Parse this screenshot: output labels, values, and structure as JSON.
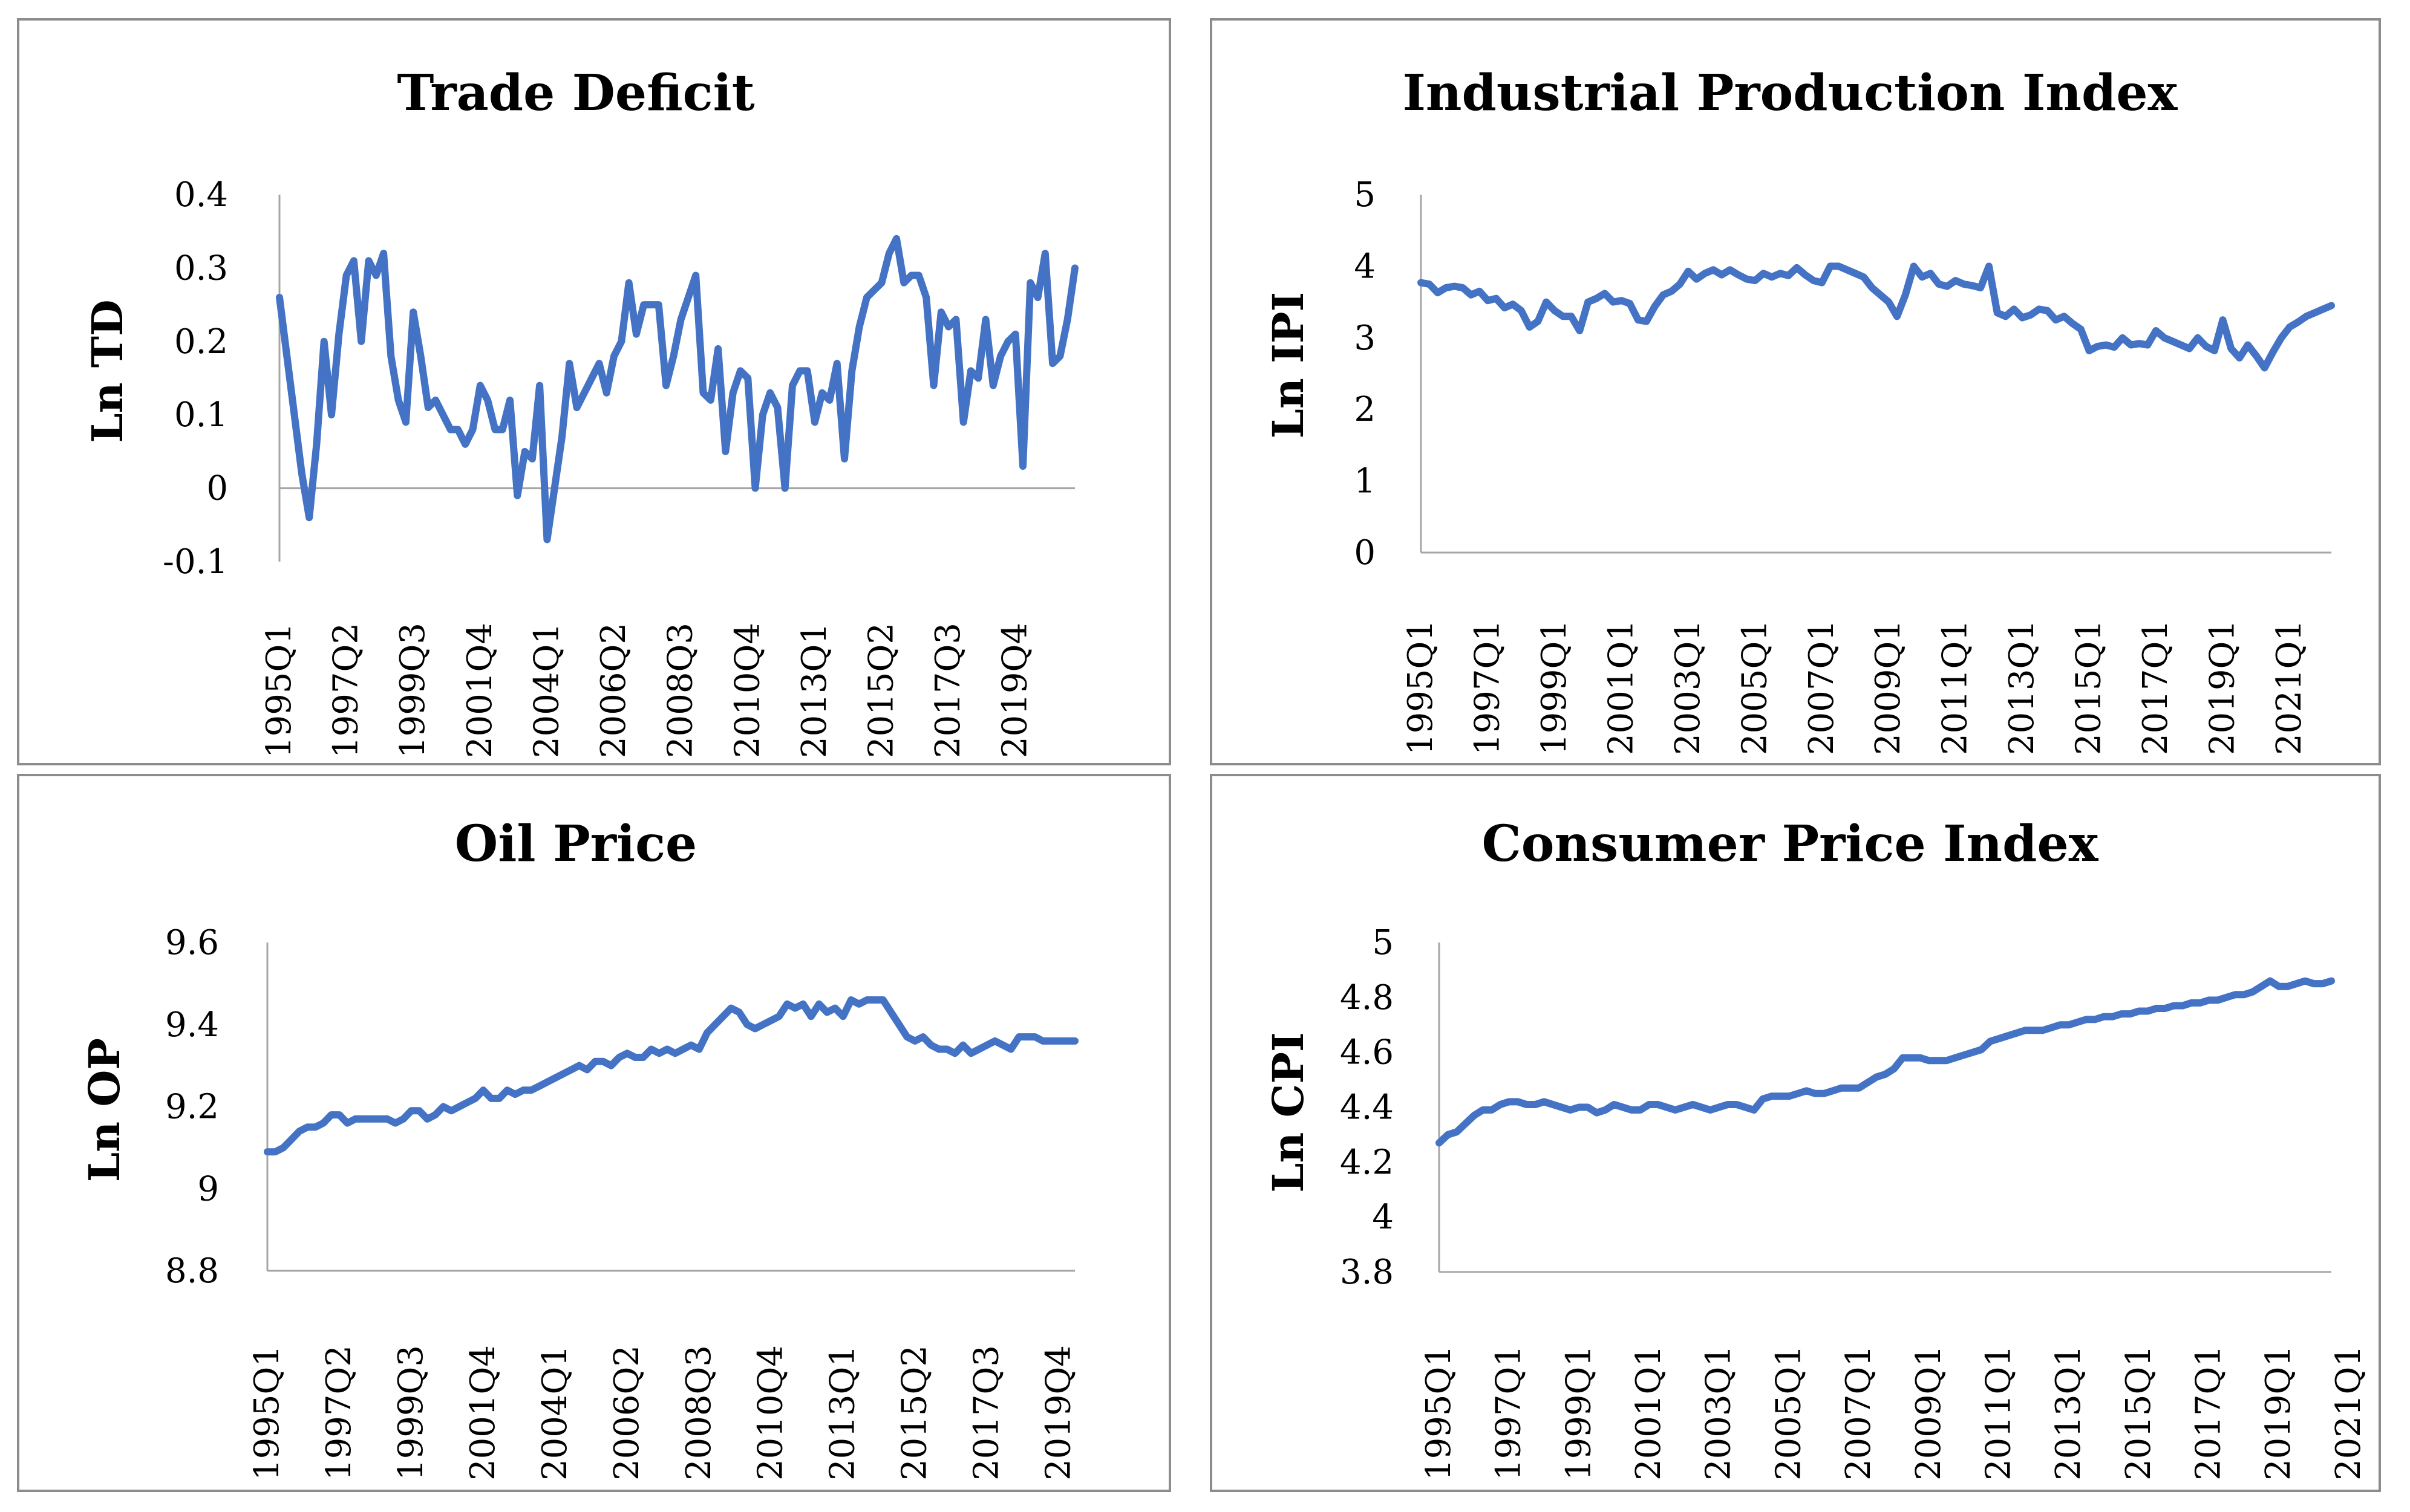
{
  "chart_data": [
    {
      "type": "line",
      "title": "Trade Deficit",
      "ylabel": "Ln TD",
      "xlabel": "",
      "ylim": [
        -0.1,
        0.4
      ],
      "yticks": [
        "-0.1",
        "0",
        "0.1",
        "0.2",
        "0.3",
        "0.4"
      ],
      "xtick_labels": [
        "1995Q1",
        "1997Q2",
        "1999Q3",
        "2001Q4",
        "2004Q1",
        "2006Q2",
        "2008Q3",
        "2010Q4",
        "2013Q1",
        "2015Q2",
        "2017Q3",
        "2019Q4"
      ],
      "grid": false,
      "color": "#4472C4",
      "start": "1995Q1",
      "series": [
        {
          "values": [
            0.26,
            0.18,
            0.1,
            0.02,
            -0.04,
            0.06,
            0.2,
            0.1,
            0.21,
            0.29,
            0.31,
            0.2,
            0.31,
            0.29,
            0.32,
            0.18,
            0.12,
            0.09,
            0.24,
            0.18,
            0.11,
            0.12,
            0.1,
            0.08,
            0.08,
            0.06,
            0.08,
            0.14,
            0.12,
            0.08,
            0.08,
            0.12,
            -0.01,
            0.05,
            0.04,
            0.14,
            -0.07,
            0.0,
            0.07,
            0.17,
            0.11,
            0.13,
            0.15,
            0.17,
            0.13,
            0.18,
            0.2,
            0.28,
            0.21,
            0.25,
            0.25,
            0.25,
            0.14,
            0.18,
            0.23,
            0.26,
            0.29,
            0.13,
            0.12,
            0.19,
            0.05,
            0.13,
            0.16,
            0.15,
            0.0,
            0.1,
            0.13,
            0.11,
            0.0,
            0.14,
            0.16,
            0.16,
            0.09,
            0.13,
            0.12,
            0.17,
            0.04,
            0.16,
            0.22,
            0.26,
            0.27,
            0.28,
            0.32,
            0.34,
            0.28,
            0.29,
            0.29,
            0.26,
            0.14,
            0.24,
            0.22,
            0.23,
            0.09,
            0.16,
            0.15,
            0.23,
            0.14,
            0.18,
            0.2,
            0.21,
            0.03,
            0.28,
            0.26,
            0.32,
            0.17,
            0.18,
            0.23,
            0.3
          ]
        }
      ]
    },
    {
      "type": "line",
      "title": "Industrial Production Index",
      "ylabel": "Ln IPI",
      "xlabel": "",
      "ylim": [
        0,
        5
      ],
      "yticks": [
        "0",
        "1",
        "2",
        "3",
        "4",
        "5"
      ],
      "xtick_labels": [
        "1995Q1",
        "1997Q1",
        "1999Q1",
        "2001Q1",
        "2003Q1",
        "2005Q1",
        "2007Q1",
        "2009Q1",
        "2011Q1",
        "2013Q1",
        "2015Q1",
        "2017Q1",
        "2019Q1",
        "2021Q1"
      ],
      "grid": false,
      "color": "#4472C4",
      "start": "1995Q1",
      "series": [
        {
          "values": [
            3.77,
            3.75,
            3.63,
            3.7,
            3.72,
            3.7,
            3.6,
            3.65,
            3.52,
            3.55,
            3.42,
            3.47,
            3.38,
            3.15,
            3.23,
            3.5,
            3.38,
            3.3,
            3.3,
            3.1,
            3.5,
            3.55,
            3.62,
            3.5,
            3.52,
            3.48,
            3.25,
            3.23,
            3.44,
            3.6,
            3.65,
            3.75,
            3.93,
            3.82,
            3.9,
            3.95,
            3.88,
            3.95,
            3.88,
            3.82,
            3.8,
            3.9,
            3.85,
            3.9,
            3.87,
            3.98,
            3.88,
            3.8,
            3.77,
            4.0,
            4.0,
            3.95,
            3.9,
            3.85,
            3.7,
            3.6,
            3.5,
            3.3,
            3.6,
            4.0,
            3.85,
            3.9,
            3.75,
            3.72,
            3.8,
            3.75,
            3.73,
            3.7,
            4.0,
            3.35,
            3.3,
            3.4,
            3.28,
            3.32,
            3.4,
            3.38,
            3.25,
            3.3,
            3.2,
            3.12,
            2.82,
            2.88,
            2.9,
            2.87,
            3.0,
            2.9,
            2.92,
            2.9,
            3.1,
            3.0,
            2.95,
            2.9,
            2.85,
            3.0,
            2.88,
            2.82,
            3.25,
            2.85,
            2.72,
            2.9,
            2.75,
            2.58,
            2.8,
            3.0,
            3.15,
            3.22,
            3.3,
            3.35,
            3.4,
            3.45
          ]
        }
      ]
    },
    {
      "type": "line",
      "title": "Oil Price",
      "ylabel": "Ln OP",
      "xlabel": "",
      "ylim": [
        8.8,
        9.6
      ],
      "yticks": [
        "8.8",
        "9",
        "9.2",
        "9.4",
        "9.6"
      ],
      "xtick_labels": [
        "1995Q1",
        "1997Q2",
        "1999Q3",
        "2001Q4",
        "2004Q1",
        "2006Q2",
        "2008Q3",
        "2010Q4",
        "2013Q1",
        "2015Q2",
        "2017Q3",
        "2019Q4"
      ],
      "grid": false,
      "color": "#4472C4",
      "start": "1995Q1",
      "series": [
        {
          "values": [
            9.09,
            9.09,
            9.1,
            9.12,
            9.14,
            9.15,
            9.15,
            9.16,
            9.18,
            9.18,
            9.16,
            9.17,
            9.17,
            9.17,
            9.17,
            9.17,
            9.16,
            9.17,
            9.19,
            9.19,
            9.17,
            9.18,
            9.2,
            9.19,
            9.2,
            9.21,
            9.22,
            9.24,
            9.22,
            9.22,
            9.24,
            9.23,
            9.24,
            9.24,
            9.25,
            9.26,
            9.27,
            9.28,
            9.29,
            9.3,
            9.29,
            9.31,
            9.31,
            9.3,
            9.32,
            9.33,
            9.32,
            9.32,
            9.34,
            9.33,
            9.34,
            9.33,
            9.34,
            9.35,
            9.34,
            9.38,
            9.4,
            9.42,
            9.44,
            9.43,
            9.4,
            9.39,
            9.4,
            9.41,
            9.42,
            9.45,
            9.44,
            9.45,
            9.42,
            9.45,
            9.43,
            9.44,
            9.42,
            9.46,
            9.45,
            9.46,
            9.46,
            9.46,
            9.43,
            9.4,
            9.37,
            9.36,
            9.37,
            9.35,
            9.34,
            9.34,
            9.33,
            9.35,
            9.33,
            9.34,
            9.35,
            9.36,
            9.35,
            9.34,
            9.37,
            9.37,
            9.37,
            9.36,
            9.36,
            9.36,
            9.36,
            9.36
          ]
        }
      ]
    },
    {
      "type": "line",
      "title": "Consumer Price Index",
      "ylabel": "Ln CPI",
      "xlabel": "",
      "ylim": [
        3.8,
        5
      ],
      "yticks": [
        "3.8",
        "4",
        "4.2",
        "4.4",
        "4.6",
        "4.8",
        "5"
      ],
      "xtick_labels": [
        "1995Q1",
        "1997Q1",
        "1999Q1",
        "2001Q1",
        "2003Q1",
        "2005Q1",
        "2007Q1",
        "2009Q1",
        "2011Q1",
        "2013Q1",
        "2015Q1",
        "2017Q1",
        "2019Q1",
        "2021Q1"
      ],
      "grid": false,
      "color": "#4472C4",
      "start": "1995Q1",
      "series": [
        {
          "values": [
            4.27,
            4.3,
            4.31,
            4.34,
            4.37,
            4.39,
            4.39,
            4.41,
            4.42,
            4.42,
            4.41,
            4.41,
            4.42,
            4.41,
            4.4,
            4.39,
            4.4,
            4.4,
            4.38,
            4.39,
            4.41,
            4.4,
            4.39,
            4.39,
            4.41,
            4.41,
            4.4,
            4.39,
            4.4,
            4.41,
            4.4,
            4.39,
            4.4,
            4.41,
            4.41,
            4.4,
            4.39,
            4.43,
            4.44,
            4.44,
            4.44,
            4.45,
            4.46,
            4.45,
            4.45,
            4.46,
            4.47,
            4.47,
            4.47,
            4.49,
            4.51,
            4.52,
            4.54,
            4.58,
            4.58,
            4.58,
            4.57,
            4.57,
            4.57,
            4.58,
            4.59,
            4.6,
            4.61,
            4.64,
            4.65,
            4.66,
            4.67,
            4.68,
            4.68,
            4.68,
            4.69,
            4.7,
            4.7,
            4.71,
            4.72,
            4.72,
            4.73,
            4.73,
            4.74,
            4.74,
            4.75,
            4.75,
            4.76,
            4.76,
            4.77,
            4.77,
            4.78,
            4.78,
            4.79,
            4.79,
            4.8,
            4.81,
            4.81,
            4.82,
            4.84,
            4.86,
            4.84,
            4.84,
            4.85,
            4.86,
            4.85,
            4.85,
            4.86
          ]
        }
      ]
    }
  ]
}
